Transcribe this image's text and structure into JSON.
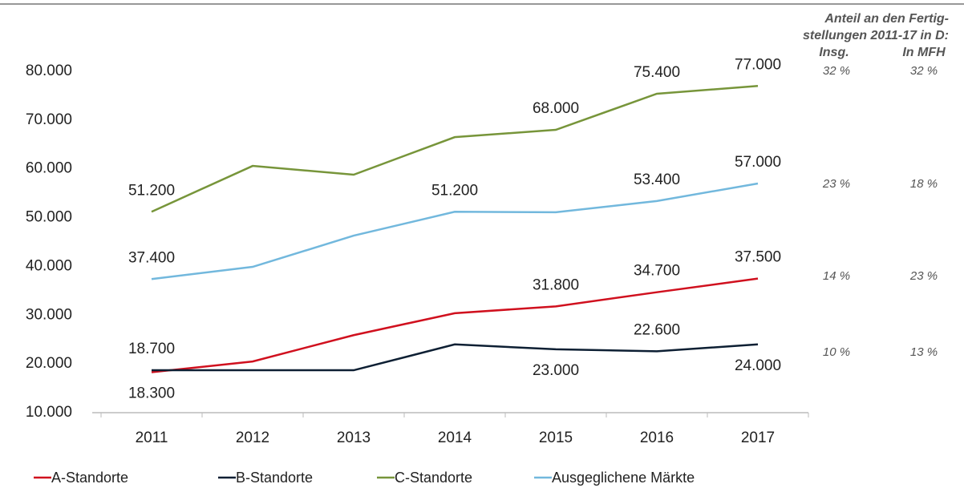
{
  "chart_data": {
    "type": "line",
    "categories": [
      "2011",
      "2012",
      "2013",
      "2014",
      "2015",
      "2016",
      "2017"
    ],
    "ylim": [
      10000,
      80000
    ],
    "yticks": [
      {
        "value": 10000,
        "label": "10.000"
      },
      {
        "value": 20000,
        "label": "20.000"
      },
      {
        "value": 30000,
        "label": "30.000"
      },
      {
        "value": 40000,
        "label": "40.000"
      },
      {
        "value": 50000,
        "label": "50.000"
      },
      {
        "value": 60000,
        "label": "60.000"
      },
      {
        "value": 70000,
        "label": "70.000"
      },
      {
        "value": 80000,
        "label": "80.000"
      }
    ],
    "series": [
      {
        "name": "A-Standorte",
        "color": "#d0101e",
        "values": [
          18300,
          20500,
          25900,
          30400,
          31800,
          34700,
          37500
        ],
        "value_labels": [
          "18.300",
          null,
          null,
          null,
          "31.800",
          "34.700",
          "37.500"
        ]
      },
      {
        "name": "B-Standorte",
        "color": "#0d1f33",
        "values": [
          18700,
          18700,
          18700,
          24000,
          23000,
          22600,
          24000
        ],
        "value_labels": [
          "18.700",
          null,
          null,
          null,
          "23.000",
          "22.600",
          "24.000"
        ]
      },
      {
        "name": "C-Standorte",
        "color": "#77953a",
        "values": [
          51200,
          60600,
          58800,
          66500,
          68000,
          75400,
          77000
        ],
        "value_labels": [
          "51.200",
          null,
          null,
          null,
          "68.000",
          "75.400",
          "77.000"
        ]
      },
      {
        "name": "Ausgeglichene Märkte",
        "color": "#72b8dd",
        "values": [
          37400,
          39900,
          46300,
          51200,
          51100,
          53400,
          57000
        ],
        "value_labels": [
          "37.400",
          null,
          null,
          "51.200",
          null,
          "53.400",
          "57.000"
        ]
      }
    ],
    "side_table": {
      "title_lines": [
        "Anteil an den Fertig-",
        "stellungen 2011-17 in D:"
      ],
      "headers": [
        "Insg.",
        "In MFH"
      ],
      "rows": [
        [
          "32 %",
          "32 %"
        ],
        [
          "23 %",
          "18 %"
        ],
        [
          "14 %",
          "23 %"
        ],
        [
          "10 %",
          "13 %"
        ]
      ]
    }
  }
}
